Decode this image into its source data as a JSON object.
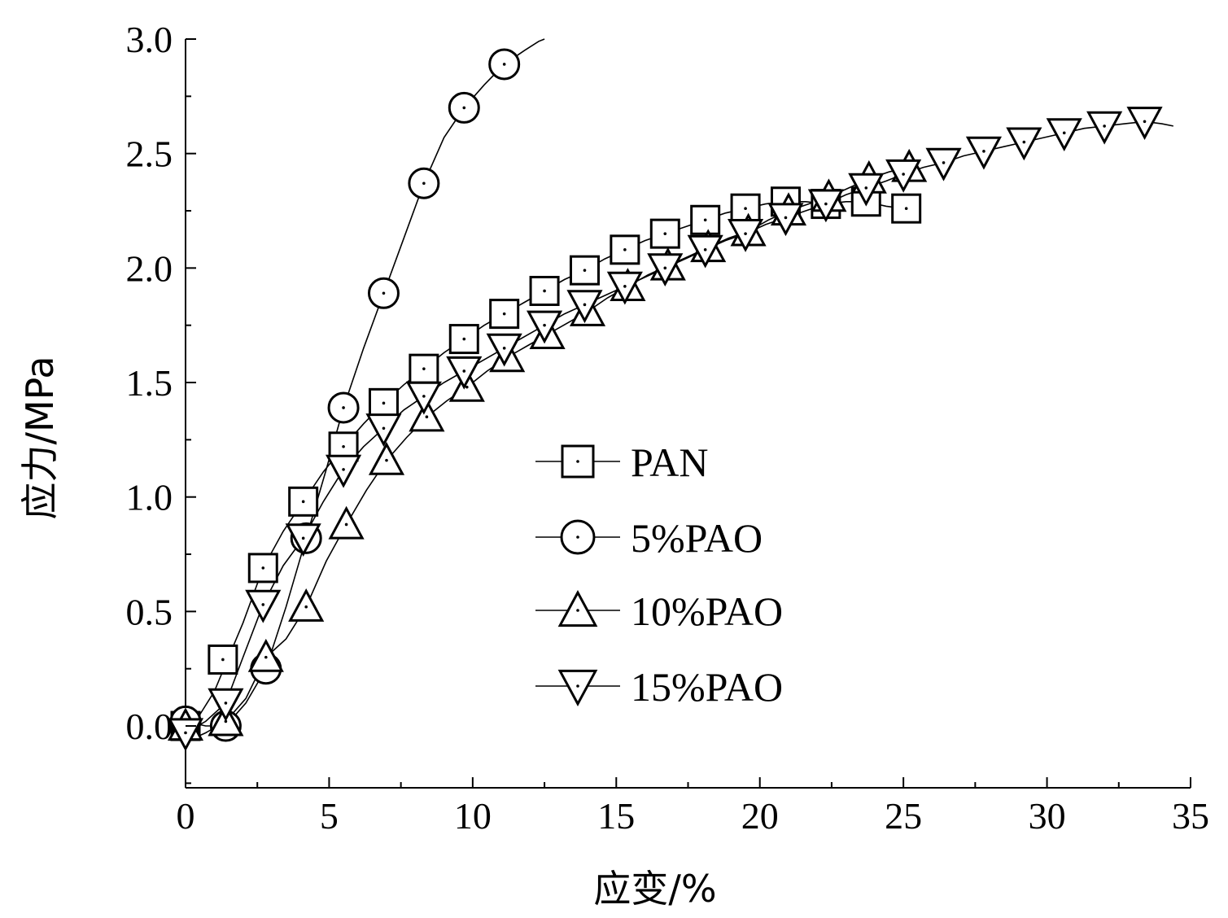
{
  "chart_data": {
    "type": "line",
    "xlabel": "应变/%",
    "ylabel": "应力/MPa",
    "xlim": [
      0,
      35
    ],
    "ylim": [
      -0.27,
      3.0
    ],
    "xticks": [
      0,
      5,
      10,
      15,
      20,
      25,
      30,
      35
    ],
    "xtick_labels": [
      "0",
      "5",
      "10",
      "15",
      "20",
      "25",
      "30",
      "35"
    ],
    "yticks": [
      0.0,
      0.5,
      1.0,
      1.5,
      2.0,
      2.5,
      3.0
    ],
    "ytick_labels": [
      "0.0",
      "0.5",
      "1.0",
      "1.5",
      "2.0",
      "2.5",
      "3.0"
    ],
    "grid": false,
    "legend_position": "center",
    "series": [
      {
        "name": "PAN",
        "marker": "square",
        "x": [
          0.0,
          1.3,
          2.7,
          4.1,
          5.5,
          6.9,
          8.3,
          9.7,
          11.1,
          12.5,
          13.9,
          15.3,
          16.7,
          18.1,
          19.5,
          20.9,
          22.3,
          23.7,
          25.1
        ],
        "y": [
          0.0,
          0.29,
          0.69,
          0.98,
          1.22,
          1.41,
          1.56,
          1.69,
          1.8,
          1.9,
          1.99,
          2.08,
          2.15,
          2.21,
          2.26,
          2.29,
          2.28,
          2.29,
          2.26
        ],
        "line_x": [
          0.0,
          0.5,
          1.0,
          1.5,
          2.0,
          2.7,
          3.4,
          4.1,
          4.8,
          5.5,
          6.2,
          6.9,
          7.6,
          8.3,
          9.0,
          9.7,
          10.4,
          11.1,
          11.8,
          12.5,
          13.2,
          13.9,
          14.6,
          15.3,
          16.0,
          16.7,
          17.4,
          18.1,
          18.8,
          19.5,
          20.2,
          20.9,
          21.6,
          22.3,
          23.0,
          23.7,
          24.4,
          25.0
        ],
        "line_y": [
          -0.05,
          0.05,
          0.15,
          0.3,
          0.45,
          0.69,
          0.85,
          0.98,
          1.11,
          1.22,
          1.32,
          1.41,
          1.49,
          1.56,
          1.63,
          1.69,
          1.75,
          1.8,
          1.85,
          1.9,
          1.95,
          1.99,
          2.04,
          2.08,
          2.12,
          2.15,
          2.18,
          2.21,
          2.24,
          2.26,
          2.28,
          2.29,
          2.29,
          2.28,
          2.29,
          2.29,
          2.27,
          2.26
        ]
      },
      {
        "name": "5%PAO",
        "marker": "circle",
        "x": [
          0.0,
          1.4,
          2.8,
          4.2,
          5.5,
          6.9,
          8.3,
          9.7,
          11.1
        ],
        "y": [
          0.02,
          0.0,
          0.25,
          0.82,
          1.39,
          1.89,
          2.37,
          2.7,
          2.89
        ],
        "line_x": [
          0.0,
          0.7,
          1.4,
          2.1,
          2.8,
          3.5,
          4.2,
          4.9,
          5.5,
          6.2,
          6.9,
          7.6,
          8.3,
          9.0,
          9.7,
          10.4,
          11.1,
          11.8,
          12.3,
          12.5
        ],
        "line_y": [
          0.02,
          0.0,
          0.0,
          0.1,
          0.25,
          0.52,
          0.82,
          1.12,
          1.39,
          1.65,
          1.89,
          2.13,
          2.37,
          2.57,
          2.7,
          2.8,
          2.89,
          2.95,
          2.99,
          3.0
        ]
      },
      {
        "name": "10%PAO",
        "marker": "triangle-up",
        "x": [
          0.0,
          1.4,
          2.8,
          4.2,
          5.6,
          7.0,
          8.4,
          9.8,
          11.2,
          12.6,
          14.0,
          15.4,
          16.8,
          18.2,
          19.6,
          21.0,
          22.4,
          23.8,
          25.2
        ],
        "y": [
          0.0,
          0.02,
          0.3,
          0.52,
          0.88,
          1.16,
          1.35,
          1.48,
          1.61,
          1.71,
          1.81,
          1.92,
          2.01,
          2.09,
          2.16,
          2.25,
          2.31,
          2.39,
          2.44
        ],
        "line_x": [
          0.0,
          0.7,
          1.4,
          2.1,
          2.8,
          3.5,
          4.2,
          4.9,
          5.6,
          6.3,
          7.0,
          7.7,
          8.4,
          9.1,
          9.8,
          10.5,
          11.2,
          11.9,
          12.6,
          13.3,
          14.0,
          14.7,
          15.4,
          16.1,
          16.8,
          17.5,
          18.2,
          18.9,
          19.6,
          20.3,
          21.0,
          21.7,
          22.4,
          23.1,
          23.8,
          24.5,
          25.2
        ],
        "line_y": [
          -0.07,
          -0.03,
          0.02,
          0.12,
          0.3,
          0.38,
          0.52,
          0.72,
          0.88,
          1.03,
          1.16,
          1.26,
          1.35,
          1.42,
          1.48,
          1.55,
          1.61,
          1.66,
          1.71,
          1.76,
          1.81,
          1.87,
          1.92,
          1.97,
          2.01,
          2.05,
          2.09,
          2.13,
          2.16,
          2.21,
          2.25,
          2.28,
          2.31,
          2.35,
          2.39,
          2.42,
          2.44
        ]
      },
      {
        "name": "15%PAO",
        "marker": "triangle-down",
        "x": [
          0.0,
          1.4,
          2.7,
          4.1,
          5.5,
          6.9,
          8.3,
          9.7,
          11.1,
          12.5,
          13.9,
          15.3,
          16.7,
          18.1,
          19.5,
          20.9,
          22.3,
          23.7,
          25.0,
          26.4,
          27.8,
          29.2,
          30.6,
          32.0,
          33.4
        ],
        "y": [
          -0.03,
          0.1,
          0.53,
          0.82,
          1.12,
          1.3,
          1.44,
          1.55,
          1.65,
          1.75,
          1.84,
          1.92,
          2.0,
          2.08,
          2.15,
          2.22,
          2.28,
          2.35,
          2.41,
          2.46,
          2.51,
          2.55,
          2.59,
          2.62,
          2.64
        ],
        "line_x": [
          0.0,
          0.7,
          1.4,
          2.0,
          2.7,
          3.4,
          4.1,
          4.8,
          5.5,
          6.2,
          6.9,
          7.6,
          8.3,
          9.0,
          9.7,
          10.4,
          11.1,
          11.8,
          12.5,
          13.2,
          13.9,
          14.6,
          15.3,
          16.0,
          16.7,
          17.4,
          18.1,
          18.8,
          19.5,
          20.2,
          20.9,
          21.6,
          22.3,
          23.0,
          23.7,
          24.4,
          25.0,
          25.7,
          26.4,
          27.1,
          27.8,
          28.5,
          29.2,
          29.9,
          30.6,
          31.3,
          32.0,
          32.7,
          33.4,
          34.0,
          34.4
        ],
        "line_y": [
          -0.03,
          0.02,
          0.1,
          0.3,
          0.53,
          0.7,
          0.82,
          0.98,
          1.12,
          1.22,
          1.3,
          1.38,
          1.44,
          1.5,
          1.55,
          1.6,
          1.65,
          1.7,
          1.75,
          1.8,
          1.84,
          1.88,
          1.92,
          1.96,
          2.0,
          2.04,
          2.08,
          2.12,
          2.15,
          2.19,
          2.22,
          2.25,
          2.28,
          2.32,
          2.35,
          2.38,
          2.41,
          2.44,
          2.46,
          2.49,
          2.51,
          2.53,
          2.55,
          2.57,
          2.59,
          2.61,
          2.62,
          2.63,
          2.64,
          2.63,
          2.62
        ]
      }
    ]
  }
}
